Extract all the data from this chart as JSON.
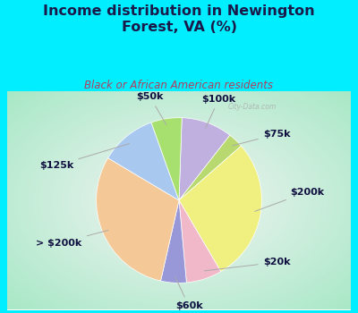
{
  "title": "Income distribution in Newington\nForest, VA (%)",
  "subtitle": "Black or African American residents",
  "labels": [
    "$100k",
    "$75k",
    "$200k",
    "$20k",
    "$60k",
    "> $200k",
    "$125k",
    "$50k"
  ],
  "sizes": [
    10,
    3,
    28,
    7,
    5,
    30,
    11,
    6
  ],
  "colors": [
    "#c0b0e0",
    "#b8d870",
    "#f0f080",
    "#f0b8c8",
    "#9898d8",
    "#f5c898",
    "#a8c8f0",
    "#a8e070"
  ],
  "background_cyan": "#00eeff",
  "background_chart_center": "#f5f5f5",
  "background_chart_edge": "#a8e8c8",
  "title_color": "#1a1a4a",
  "subtitle_color": "#b04060",
  "watermark": "City-Data.com",
  "label_color": "#101040",
  "startangle": 88,
  "label_fontsize": 8.0,
  "title_fontsize": 11.5
}
